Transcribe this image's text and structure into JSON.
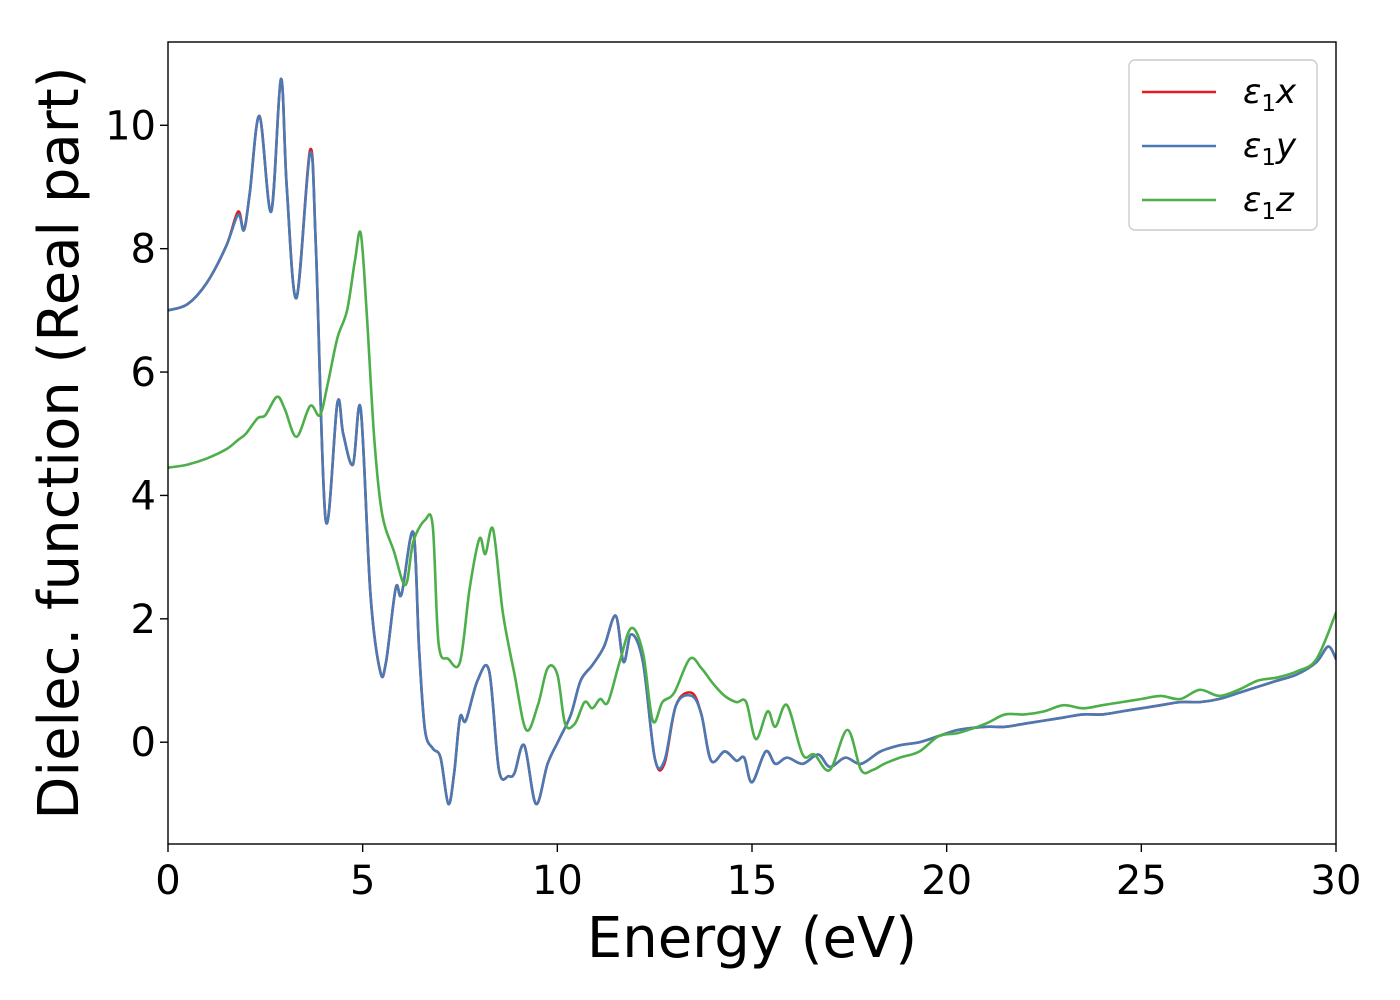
{
  "chart_data": {
    "type": "line",
    "xlabel": "Energy (eV)",
    "ylabel": "Dielec. function (Real part)",
    "xlim": [
      0,
      30
    ],
    "ylim": [
      -1.65,
      11.35
    ],
    "xticks": [
      0,
      5,
      10,
      15,
      20,
      25,
      30
    ],
    "yticks": [
      0,
      2,
      4,
      6,
      8,
      10
    ],
    "grid": false,
    "legend_position": "top-right",
    "series": [
      {
        "name": "ε₁x",
        "legend_base": "ε",
        "legend_sub": "1",
        "legend_var": "x",
        "color": "#e41a1c",
        "x": [
          0,
          0.5,
          1.0,
          1.5,
          1.8,
          1.95,
          2.1,
          2.35,
          2.65,
          2.9,
          3.05,
          3.3,
          3.65,
          3.8,
          4.05,
          4.35,
          4.5,
          4.75,
          4.95,
          5.2,
          5.45,
          5.6,
          5.85,
          6.0,
          6.3,
          6.45,
          6.6,
          6.8,
          7.0,
          7.2,
          7.35,
          7.5,
          7.65,
          7.95,
          8.25,
          8.5,
          8.75,
          8.9,
          9.15,
          9.45,
          9.75,
          10.05,
          10.35,
          10.6,
          10.9,
          11.2,
          11.5,
          11.7,
          11.9,
          12.2,
          12.5,
          12.75,
          13.05,
          13.45,
          13.7,
          13.95,
          14.3,
          14.6,
          14.8,
          15.0,
          15.35,
          15.6,
          15.9,
          16.3,
          16.7,
          17.0,
          17.4,
          17.8,
          18.3,
          18.8,
          19.3,
          19.8,
          20.3,
          21.0,
          21.5,
          22.0,
          22.5,
          23.0,
          23.5,
          24.0,
          24.5,
          25.0,
          25.5,
          26.0,
          26.5,
          27.0,
          27.5,
          28.0,
          28.5,
          29.0,
          29.5,
          29.8,
          30.0
        ],
        "values": [
          7.0,
          7.1,
          7.45,
          8.05,
          8.6,
          8.3,
          8.9,
          10.15,
          8.6,
          10.75,
          9.0,
          7.2,
          9.6,
          8.0,
          3.6,
          5.5,
          5.0,
          4.5,
          5.4,
          2.4,
          1.15,
          1.3,
          2.5,
          2.4,
          3.4,
          1.5,
          0.2,
          -0.1,
          -0.25,
          -1.0,
          -0.5,
          0.4,
          0.35,
          1.0,
          1.15,
          -0.45,
          -0.55,
          -0.5,
          -0.05,
          -1.0,
          -0.35,
          0.05,
          0.45,
          1.0,
          1.25,
          1.55,
          2.05,
          1.3,
          1.75,
          1.3,
          -0.25,
          -0.35,
          0.6,
          0.8,
          0.45,
          -0.3,
          -0.15,
          -0.3,
          -0.25,
          -0.65,
          -0.15,
          -0.35,
          -0.25,
          -0.35,
          -0.2,
          -0.4,
          -0.25,
          -0.35,
          -0.15,
          -0.05,
          0.0,
          0.1,
          0.2,
          0.25,
          0.25,
          0.3,
          0.35,
          0.4,
          0.45,
          0.45,
          0.5,
          0.55,
          0.6,
          0.65,
          0.65,
          0.7,
          0.8,
          0.9,
          1.0,
          1.1,
          1.3,
          1.55,
          1.35
        ]
      },
      {
        "name": "ε₁y",
        "legend_base": "ε",
        "legend_sub": "1",
        "legend_var": "y",
        "color": "#4a7ab4",
        "x": [
          0,
          0.5,
          1.0,
          1.5,
          1.8,
          1.95,
          2.1,
          2.35,
          2.65,
          2.9,
          3.05,
          3.3,
          3.65,
          3.8,
          4.05,
          4.35,
          4.5,
          4.75,
          4.95,
          5.2,
          5.45,
          5.6,
          5.85,
          6.0,
          6.3,
          6.45,
          6.6,
          6.8,
          7.0,
          7.2,
          7.35,
          7.5,
          7.65,
          7.95,
          8.25,
          8.5,
          8.75,
          8.9,
          9.15,
          9.45,
          9.75,
          10.05,
          10.35,
          10.6,
          10.9,
          11.2,
          11.5,
          11.7,
          11.9,
          12.2,
          12.5,
          12.75,
          13.05,
          13.45,
          13.7,
          13.95,
          14.3,
          14.6,
          14.8,
          15.0,
          15.35,
          15.6,
          15.9,
          16.3,
          16.7,
          17.0,
          17.4,
          17.8,
          18.3,
          18.8,
          19.3,
          19.8,
          20.3,
          21.0,
          21.5,
          22.0,
          22.5,
          23.0,
          23.5,
          24.0,
          24.5,
          25.0,
          25.5,
          26.0,
          26.5,
          27.0,
          27.5,
          28.0,
          28.5,
          29.0,
          29.5,
          29.8,
          30.0
        ],
        "values": [
          7.0,
          7.1,
          7.45,
          8.05,
          8.55,
          8.3,
          8.9,
          10.15,
          8.6,
          10.75,
          9.0,
          7.2,
          9.55,
          8.0,
          3.6,
          5.5,
          5.0,
          4.5,
          5.4,
          2.4,
          1.15,
          1.3,
          2.5,
          2.4,
          3.4,
          1.5,
          0.2,
          -0.1,
          -0.25,
          -1.0,
          -0.5,
          0.4,
          0.35,
          1.0,
          1.15,
          -0.45,
          -0.55,
          -0.5,
          -0.05,
          -1.0,
          -0.35,
          0.05,
          0.45,
          1.0,
          1.25,
          1.55,
          2.05,
          1.3,
          1.75,
          1.3,
          -0.25,
          -0.3,
          0.6,
          0.75,
          0.45,
          -0.3,
          -0.15,
          -0.3,
          -0.25,
          -0.65,
          -0.15,
          -0.35,
          -0.25,
          -0.35,
          -0.2,
          -0.4,
          -0.25,
          -0.35,
          -0.15,
          -0.05,
          0.0,
          0.1,
          0.2,
          0.25,
          0.25,
          0.3,
          0.35,
          0.4,
          0.45,
          0.45,
          0.5,
          0.55,
          0.6,
          0.65,
          0.65,
          0.7,
          0.8,
          0.9,
          1.0,
          1.1,
          1.3,
          1.55,
          1.35
        ]
      },
      {
        "name": "ε₁z",
        "legend_base": "ε",
        "legend_sub": "1",
        "legend_var": "z",
        "color": "#4daf4a",
        "x": [
          0,
          0.5,
          1.0,
          1.5,
          1.8,
          2.0,
          2.3,
          2.5,
          2.8,
          3.0,
          3.3,
          3.65,
          3.9,
          4.1,
          4.35,
          4.6,
          4.8,
          4.95,
          5.1,
          5.3,
          5.5,
          5.8,
          6.1,
          6.3,
          6.6,
          6.8,
          6.95,
          7.2,
          7.5,
          7.75,
          8.0,
          8.15,
          8.35,
          8.6,
          8.9,
          9.2,
          9.5,
          9.75,
          10.0,
          10.2,
          10.45,
          10.7,
          10.9,
          11.1,
          11.3,
          11.6,
          11.9,
          12.2,
          12.45,
          12.7,
          13.0,
          13.4,
          13.7,
          14.0,
          14.3,
          14.6,
          14.85,
          15.1,
          15.4,
          15.6,
          15.9,
          16.3,
          16.6,
          17.0,
          17.45,
          17.8,
          18.1,
          18.4,
          18.8,
          19.3,
          19.8,
          20.3,
          21.0,
          21.5,
          22.0,
          22.5,
          23.0,
          23.5,
          24.0,
          24.5,
          25.0,
          25.5,
          26.0,
          26.5,
          27.0,
          27.5,
          28.0,
          28.5,
          29.0,
          29.5,
          30.0
        ],
        "values": [
          4.45,
          4.5,
          4.6,
          4.75,
          4.9,
          5.0,
          5.25,
          5.3,
          5.6,
          5.4,
          4.95,
          5.45,
          5.3,
          5.8,
          6.55,
          7.0,
          7.8,
          8.25,
          7.0,
          4.9,
          3.7,
          3.1,
          2.55,
          3.25,
          3.6,
          3.5,
          1.6,
          1.35,
          1.3,
          2.5,
          3.3,
          3.05,
          3.45,
          2.1,
          1.1,
          0.2,
          0.6,
          1.2,
          1.1,
          0.3,
          0.3,
          0.65,
          0.55,
          0.7,
          0.65,
          1.3,
          1.85,
          1.45,
          0.35,
          0.65,
          0.8,
          1.35,
          1.2,
          0.95,
          0.75,
          0.65,
          0.65,
          0.05,
          0.5,
          0.25,
          0.6,
          -0.2,
          -0.2,
          -0.45,
          0.2,
          -0.45,
          -0.45,
          -0.35,
          -0.25,
          -0.15,
          0.1,
          0.15,
          0.3,
          0.45,
          0.45,
          0.5,
          0.6,
          0.55,
          0.6,
          0.65,
          0.7,
          0.75,
          0.7,
          0.85,
          0.75,
          0.85,
          1.0,
          1.05,
          1.15,
          1.35,
          2.1
        ]
      }
    ]
  }
}
